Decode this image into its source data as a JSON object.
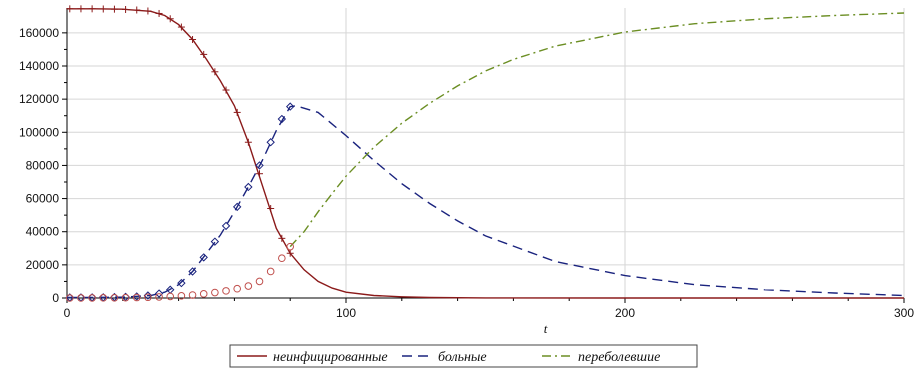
{
  "chart_data": {
    "type": "line",
    "title": "",
    "xlabel": "t",
    "ylabel": "",
    "xlim": [
      0,
      300
    ],
    "ylim": [
      0,
      175000
    ],
    "x_ticks": [
      0,
      100,
      200,
      300
    ],
    "y_ticks": [
      0,
      20000,
      40000,
      60000,
      80000,
      100000,
      120000,
      140000,
      160000
    ],
    "grid": true,
    "legend_position": "bottom",
    "series": [
      {
        "name": "неинфицированные",
        "color": "#8b1a1a",
        "style": "solid",
        "x": [
          0,
          10,
          20,
          30,
          35,
          40,
          45,
          50,
          55,
          60,
          65,
          70,
          75,
          80,
          85,
          90,
          95,
          100,
          110,
          120,
          130,
          150,
          200,
          250,
          300
        ],
        "values": [
          174500,
          174500,
          174300,
          173000,
          170500,
          165000,
          156000,
          144000,
          131000,
          116000,
          94000,
          68000,
          42000,
          27000,
          17000,
          10000,
          6000,
          3500,
          1500,
          700,
          300,
          80,
          10,
          0,
          0
        ]
      },
      {
        "name": "больные",
        "color": "#1a237e",
        "style": "dashed",
        "x": [
          0,
          10,
          20,
          30,
          35,
          40,
          45,
          50,
          55,
          60,
          65,
          70,
          75,
          80,
          82,
          90,
          100,
          110,
          120,
          130,
          140,
          150,
          175,
          200,
          225,
          250,
          275,
          300
        ],
        "values": [
          300,
          350,
          500,
          1500,
          3500,
          8000,
          16000,
          27000,
          38000,
          52000,
          67000,
          83000,
          101000,
          115500,
          116000,
          112000,
          98000,
          83000,
          69000,
          57000,
          46500,
          37500,
          22000,
          13500,
          8000,
          5000,
          3000,
          1500
        ]
      },
      {
        "name": "переболевшие",
        "color": "#6b8e23",
        "style": "dashdot",
        "x": [
          80,
          85,
          90,
          95,
          100,
          110,
          120,
          130,
          140,
          150,
          160,
          175,
          200,
          225,
          250,
          275,
          300
        ],
        "values": [
          31000,
          40000,
          52000,
          63000,
          73500,
          91000,
          105500,
          117500,
          128000,
          137000,
          144000,
          152000,
          160500,
          165500,
          168500,
          170500,
          172000
        ]
      }
    ],
    "markers": [
      {
        "of_series": "неинфицированные",
        "symbol": "cross",
        "color": "#8b1a1a",
        "x": [
          1,
          5,
          9,
          13,
          17,
          21,
          25,
          29,
          33,
          37,
          41,
          45,
          49,
          53,
          57,
          61,
          65,
          69,
          73,
          77,
          80
        ],
        "values": [
          174500,
          174500,
          174500,
          174400,
          174300,
          174100,
          173800,
          173200,
          171700,
          168500,
          163500,
          156000,
          147000,
          136500,
          125500,
          112000,
          94000,
          75000,
          54000,
          36000,
          27000
        ]
      },
      {
        "of_series": "больные",
        "symbol": "diamond",
        "color": "#1a237e",
        "x": [
          1,
          5,
          9,
          13,
          17,
          21,
          25,
          29,
          33,
          37,
          41,
          45,
          49,
          53,
          57,
          61,
          65,
          69,
          73,
          77,
          80
        ],
        "values": [
          300,
          320,
          360,
          420,
          520,
          700,
          950,
          1500,
          2700,
          5000,
          9000,
          16000,
          24500,
          34000,
          43500,
          55000,
          67000,
          80000,
          94000,
          108000,
          115500
        ]
      },
      {
        "of_series": "переболевшие",
        "symbol": "circle",
        "color": "#c0504d",
        "x": [
          1,
          5,
          9,
          13,
          17,
          21,
          25,
          29,
          33,
          37,
          41,
          45,
          49,
          53,
          57,
          61,
          65,
          69,
          73,
          77,
          80
        ],
        "values": [
          0,
          20,
          50,
          90,
          140,
          210,
          300,
          450,
          650,
          950,
          1300,
          1800,
          2500,
          3300,
          4300,
          5600,
          7200,
          10000,
          16000,
          24000,
          31000
        ]
      }
    ]
  }
}
